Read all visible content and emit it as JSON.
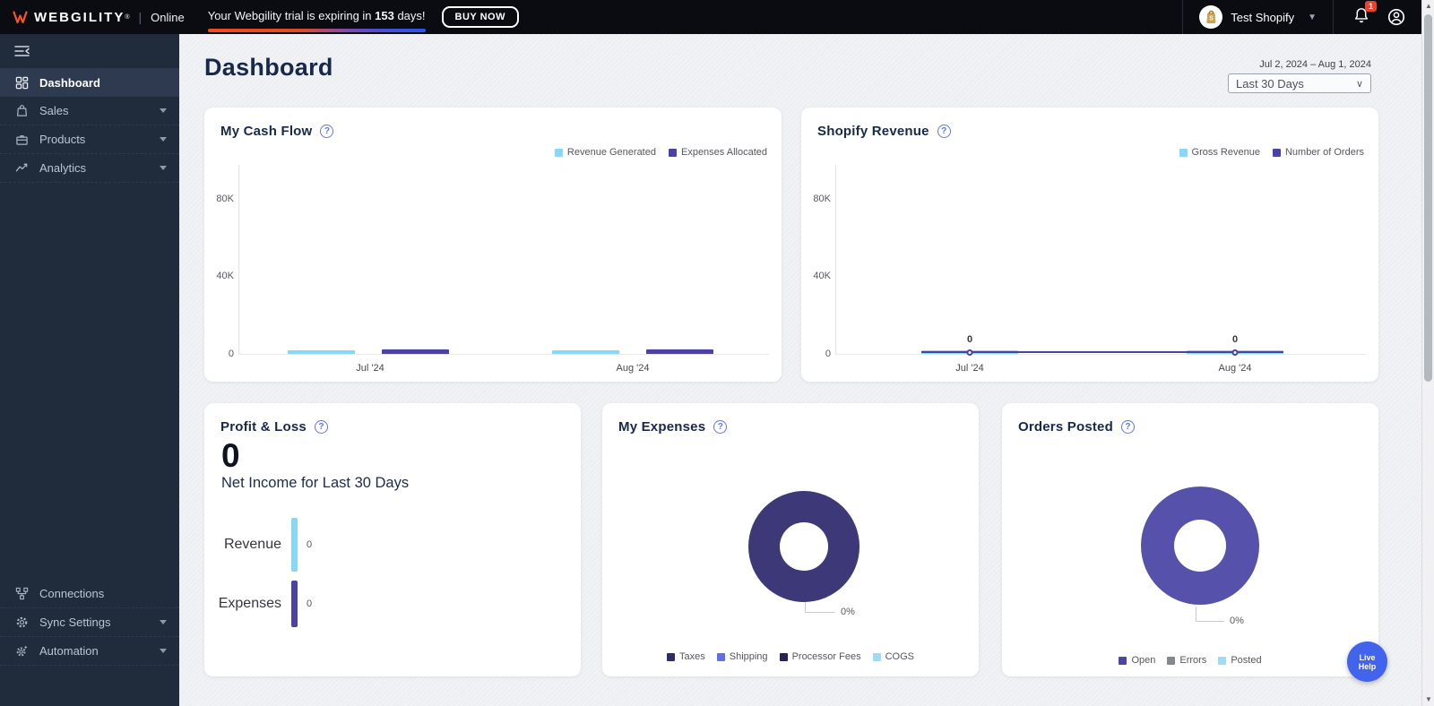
{
  "topbar": {
    "brand": "WEBGILITY",
    "registered": "®",
    "separator": "|",
    "mode": "Online",
    "trial_prefix": "Your Webgility trial is expiring in ",
    "trial_days": "153",
    "trial_suffix": " days!",
    "buy_now_label": "BUY NOW",
    "store_name": "Test Shopify",
    "notification_badge": "1"
  },
  "sidebar": {
    "items": [
      {
        "label": "Dashboard",
        "icon": "dashboard-icon",
        "active": true,
        "expandable": false
      },
      {
        "label": "Sales",
        "icon": "sales-bag-icon",
        "active": false,
        "expandable": true
      },
      {
        "label": "Products",
        "icon": "products-box-icon",
        "active": false,
        "expandable": true
      },
      {
        "label": "Analytics",
        "icon": "analytics-icon",
        "active": false,
        "expandable": true
      }
    ],
    "bottom_items": [
      {
        "label": "Connections",
        "icon": "connections-icon",
        "expandable": false
      },
      {
        "label": "Sync Settings",
        "icon": "sync-settings-gear-icon",
        "expandable": true
      },
      {
        "label": "Automation",
        "icon": "automation-gear-icon",
        "expandable": true
      }
    ]
  },
  "header": {
    "title": "Dashboard",
    "date_range": "Jul 2, 2024 – Aug 1, 2024",
    "range_selected": "Last 30 Days"
  },
  "ui": {
    "help_glyph": "?"
  },
  "cards": {
    "cash_flow": {
      "title": "My Cash Flow",
      "chart_data": {
        "type": "bar",
        "categories": [
          "Jul '24",
          "Aug '24"
        ],
        "series": [
          {
            "name": "Revenue Generated",
            "color": "#87d7f8",
            "values": [
              2000,
              2000
            ]
          },
          {
            "name": "Expenses Allocated",
            "color": "#4a42a5",
            "values": [
              2200,
              2200
            ]
          }
        ],
        "yticks": [
          {
            "label": "0",
            "value": 0
          },
          {
            "label": "40K",
            "value": 40000
          },
          {
            "label": "80K",
            "value": 80000
          }
        ],
        "ylim": [
          0,
          98000
        ],
        "legend_position": "top-right",
        "grid": false
      }
    },
    "shopify_revenue": {
      "title": "Shopify Revenue",
      "chart_data": {
        "type": "bar+line",
        "categories": [
          "Jul '24",
          "Aug '24"
        ],
        "series": [
          {
            "name": "Gross Revenue",
            "kind": "bar",
            "color": "#87d7f8",
            "values": [
              1800,
              1800
            ]
          },
          {
            "name": "Number of Orders",
            "kind": "line",
            "color": "#4a42a5",
            "values": [
              0,
              0
            ],
            "point_labels": [
              "0",
              "0"
            ]
          }
        ],
        "yticks": [
          {
            "label": "0",
            "value": 0
          },
          {
            "label": "40K",
            "value": 40000
          },
          {
            "label": "80K",
            "value": 80000
          }
        ],
        "ylim": [
          0,
          98000
        ],
        "legend_position": "top-right",
        "grid": false
      }
    },
    "profit_loss": {
      "title": "Profit & Loss",
      "value": "0",
      "subtitle": "Net Income for Last 30 Days",
      "rows": [
        {
          "label": "Revenue",
          "value": "0",
          "color": "#87d7f8"
        },
        {
          "label": "Expenses",
          "value": "0",
          "color": "#4a42a5"
        }
      ]
    },
    "expenses": {
      "title": "My Expenses",
      "chart_data": {
        "type": "pie",
        "donut": true,
        "ring_color": "#3d3878",
        "callout_label": "0%",
        "values": [
          {
            "label": "Taxes",
            "value": 0
          },
          {
            "label": "Shipping",
            "value": 0
          },
          {
            "label": "Processor Fees",
            "value": 0
          },
          {
            "label": "COGS",
            "value": 0
          }
        ],
        "legend": [
          {
            "label": "Taxes",
            "color": "#2e2c6b"
          },
          {
            "label": "Shipping",
            "color": "#5f6fe8"
          },
          {
            "label": "Processor Fees",
            "color": "#262357"
          },
          {
            "label": "COGS",
            "color": "#9edbf7"
          }
        ]
      }
    },
    "orders_posted": {
      "title": "Orders Posted",
      "chart_data": {
        "type": "pie",
        "donut": true,
        "ring_color": "#5652ab",
        "callout_label": "0%",
        "values": [
          {
            "label": "Open",
            "value": 0
          },
          {
            "label": "Errors",
            "value": 0
          },
          {
            "label": "Posted",
            "value": 0
          }
        ],
        "legend": [
          {
            "label": "Open",
            "color": "#4a47a3"
          },
          {
            "label": "Errors",
            "color": "#84878f"
          },
          {
            "label": "Posted",
            "color": "#9edbf7"
          }
        ]
      }
    }
  },
  "live_help": {
    "line1": "Live",
    "line2": "Help"
  },
  "colors": {
    "topbar_bg": "#0a0c12",
    "sidebar_bg": "#202b3b",
    "sidebar_active_bg": "#2d3a50",
    "accent_indigo": "#4a42a5",
    "accent_light_blue": "#87d7f8",
    "badge_red": "#e8432d",
    "live_help_blue": "#4263eb",
    "brand_orange": "#f4512c"
  }
}
